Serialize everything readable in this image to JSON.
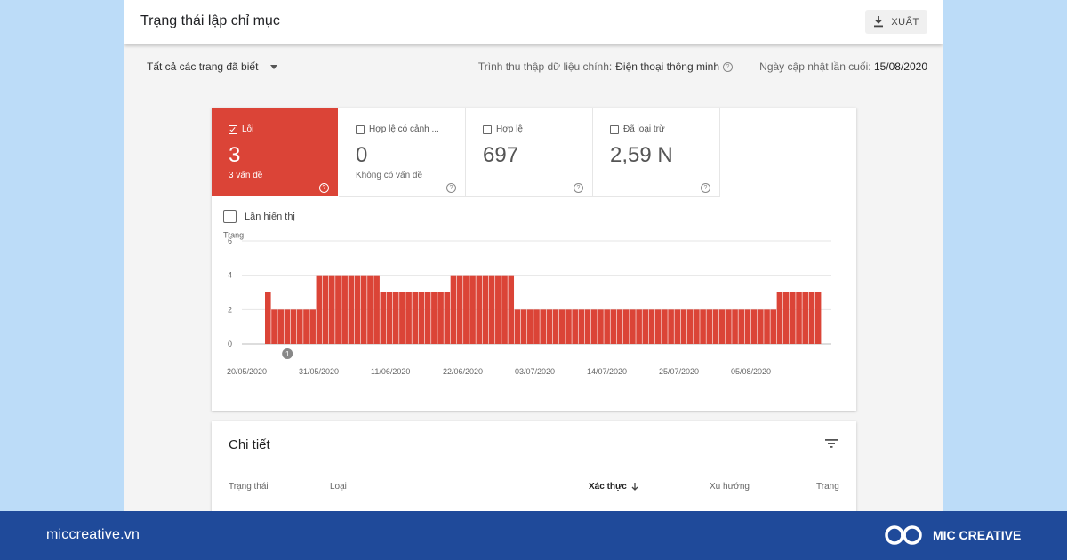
{
  "header": {
    "title": "Trạng thái lập chỉ mục",
    "export_label": "XUẤT"
  },
  "filters": {
    "scope": "Tất cả các trang đã biết",
    "crawler_label": "Trình thu thập dữ liệu chính:",
    "crawler_value": "Điện thoại thông minh",
    "updated_label": "Ngày cập nhật lần cuối:",
    "updated_value": "15/08/2020"
  },
  "tiles": [
    {
      "label": "Lỗi",
      "value": "3",
      "sub": "3 vấn đề",
      "active": true
    },
    {
      "label": "Hợp lệ có cảnh ...",
      "value": "0",
      "sub": "Không có vấn đề",
      "active": false
    },
    {
      "label": "Hợp lệ",
      "value": "697",
      "sub": "",
      "active": false
    },
    {
      "label": "Đã loại trừ",
      "value": "2,59 N",
      "sub": "",
      "active": false
    }
  ],
  "impressions_label": "Lần hiển thị",
  "chart_data": {
    "type": "bar",
    "ylabel": "Trang",
    "ylim": [
      0,
      6
    ],
    "yticks": [
      "0",
      "2",
      "4",
      "6"
    ],
    "xticks": [
      "20/05/2020",
      "31/05/2020",
      "11/06/2020",
      "22/06/2020",
      "03/07/2020",
      "14/07/2020",
      "25/07/2020",
      "05/08/2020"
    ],
    "color": "#db4437",
    "annotation": "1",
    "series": [
      {
        "values": [
          3,
          2,
          2,
          2,
          2,
          2,
          2,
          2,
          4,
          4,
          4,
          4,
          4,
          4,
          4,
          4,
          4,
          4,
          3,
          3,
          3,
          3,
          3,
          3,
          3,
          3,
          3,
          3,
          3,
          4,
          4,
          4,
          4,
          4,
          4,
          4,
          4,
          4,
          4,
          2,
          2,
          2,
          2,
          2,
          2,
          2,
          2,
          2,
          2,
          2,
          2,
          2,
          2,
          2,
          2,
          2,
          2,
          2,
          2,
          2,
          2,
          2,
          2,
          2,
          2,
          2,
          2,
          2,
          2,
          2,
          2,
          2,
          2,
          2,
          2,
          2,
          2,
          2,
          2,
          2,
          3,
          3,
          3,
          3,
          3,
          3,
          3
        ]
      }
    ]
  },
  "details": {
    "title": "Chi tiết",
    "columns": [
      "Trạng thái",
      "Loại",
      "Xác thực",
      "Xu hướng",
      "Trang"
    ]
  },
  "footer": {
    "site": "miccreative.vn",
    "brand": "MIC CREATIVE"
  }
}
